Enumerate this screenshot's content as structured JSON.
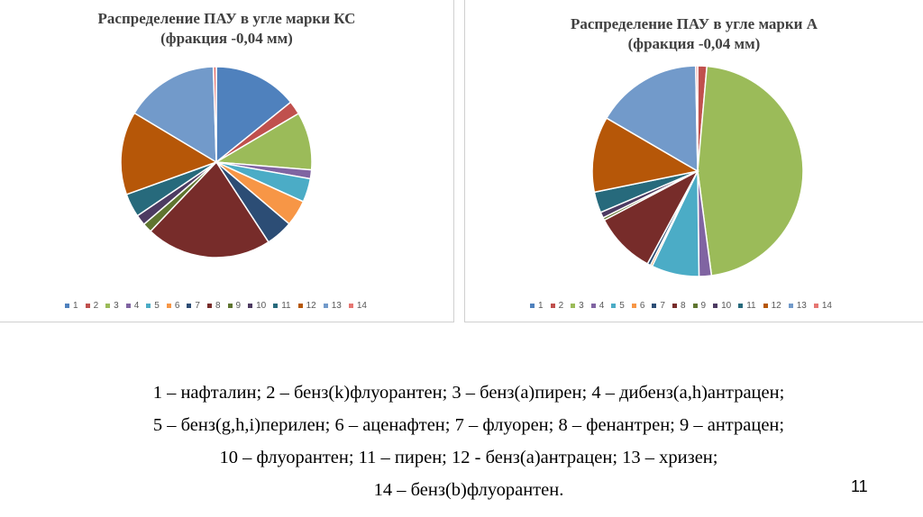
{
  "colors": [
    "#4F81BD",
    "#C0504D",
    "#9BBB59",
    "#8064A2",
    "#4BACC6",
    "#F79646",
    "#2C4D75",
    "#772C2A",
    "#5F7530",
    "#4D3B62",
    "#276A7C",
    "#B65708",
    "#729ACA",
    "#E67672"
  ],
  "chart_data": [
    {
      "type": "pie",
      "title_lines": [
        "Распределение ПАУ в угле марки КС",
        "(фракция -0,04 мм)"
      ],
      "categories": [
        "1",
        "2",
        "3",
        "4",
        "5",
        "6",
        "7",
        "8",
        "9",
        "10",
        "11",
        "12",
        "13",
        "14"
      ],
      "values": [
        14.2,
        2.3,
        9.8,
        1.5,
        4.0,
        4.4,
        4.6,
        21.3,
        1.6,
        1.8,
        4.0,
        14.1,
        15.9,
        0.5
      ],
      "legend": "bottom",
      "legend_labels": [
        "1",
        "2",
        "3",
        "4",
        "5",
        "6",
        "7",
        "8",
        "9",
        "10",
        "11",
        "12",
        "13",
        "14"
      ]
    },
    {
      "type": "pie",
      "title_lines": [
        "Распределение ПАУ в угле марки А",
        "(фракция -0,04 мм)"
      ],
      "categories": [
        "1",
        "2",
        "3",
        "4",
        "5",
        "6",
        "7",
        "8",
        "9",
        "10",
        "11",
        "12",
        "13",
        "14"
      ],
      "values": [
        0.0,
        1.4,
        46.5,
        1.9,
        7.3,
        0.3,
        0.5,
        9.4,
        0.4,
        0.9,
        3.2,
        11.6,
        16.3,
        0.3
      ],
      "legend": "bottom",
      "legend_labels": [
        "1",
        "2",
        "3",
        "4",
        "5",
        "6",
        "7",
        "8",
        "9",
        "10",
        "11",
        "12",
        "13",
        "14"
      ]
    }
  ],
  "caption": {
    "lines": [
      "1 – нафталин; 2 – бенз(k)флуорантен; 3 – бенз(а)пирен; 4 – дибенз(a,h)антрацен;",
      "5 – бенз(g,h,i)перилен; 6 – аценафтен; 7 – флуорен; 8 – фенантрен; 9 – антрацен;",
      "10 – флуорантен; 11 – пирен; 12 - бенз(a)антрацен; 13 – хризен;",
      "14 – бенз(b)флуорантен."
    ]
  },
  "page_number": "11"
}
